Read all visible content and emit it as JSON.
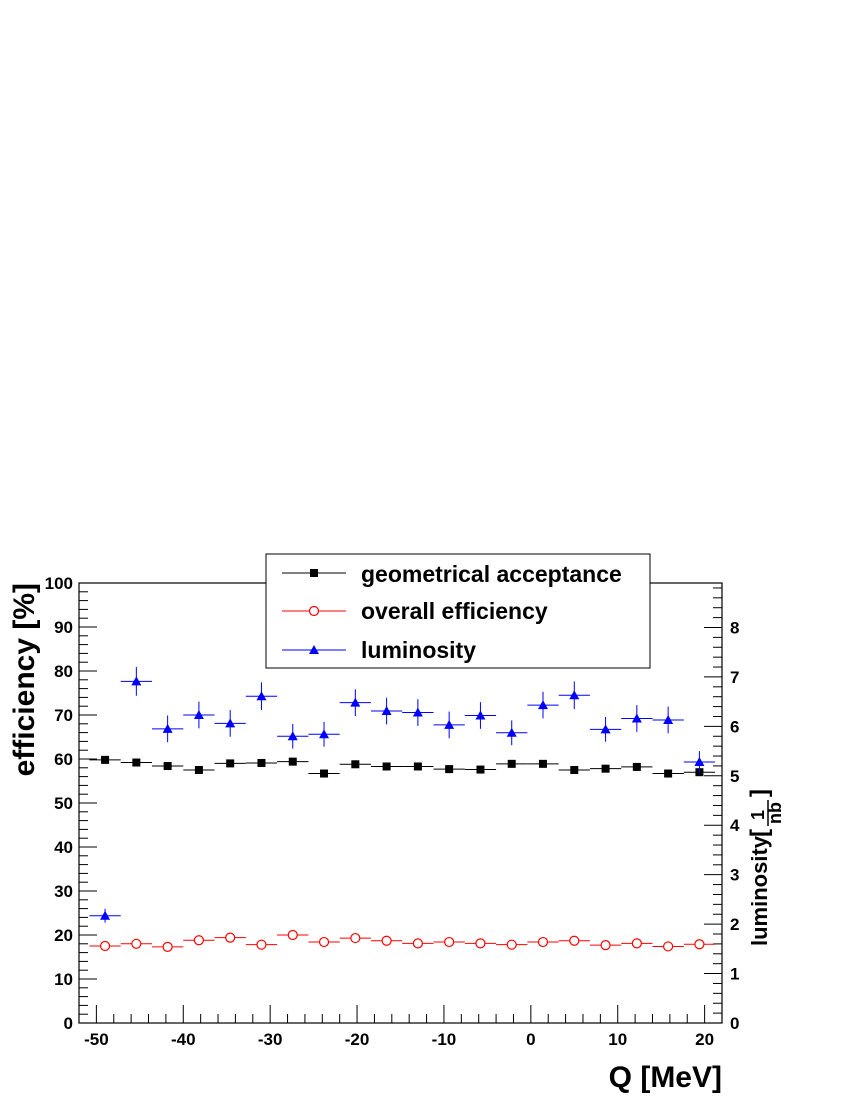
{
  "chart_data": {
    "type": "scatter",
    "title": "",
    "xlabel": "Q [MeV]",
    "ylabel": "efficiency [%]",
    "y2label_main": "luminosity",
    "y2label_unit_num": "1",
    "y2label_unit_den": "nb",
    "xlim": [
      -52,
      22
    ],
    "ylim": [
      0,
      100
    ],
    "y2lim": [
      0,
      8.9
    ],
    "x_ticks": [
      -50,
      -40,
      -30,
      -20,
      -10,
      0,
      10,
      20
    ],
    "y_ticks": [
      0,
      10,
      20,
      30,
      40,
      50,
      60,
      70,
      80,
      90,
      100
    ],
    "y2_ticks": [
      0,
      1,
      2,
      3,
      4,
      5,
      6,
      7,
      8
    ],
    "x_bin_halfwidth": 1.8,
    "legend_position": "top-center",
    "grid": false,
    "colors": {
      "acceptance": "#000000",
      "efficiency": "#ff0000",
      "luminosity": "#0000ff"
    },
    "x": [
      -49.0,
      -45.4,
      -41.8,
      -38.2,
      -34.6,
      -31.0,
      -27.4,
      -23.8,
      -20.2,
      -16.6,
      -13.0,
      -9.4,
      -5.8,
      -2.2,
      1.4,
      5.0,
      8.6,
      12.2,
      15.8,
      19.4
    ],
    "series": [
      {
        "name": "geometrical acceptance",
        "axis": "left",
        "marker": "filled-square",
        "values": [
          59.8,
          59.2,
          58.4,
          57.5,
          59.0,
          59.1,
          59.4,
          56.7,
          58.8,
          58.3,
          58.3,
          57.7,
          57.6,
          58.9,
          58.9,
          57.5,
          57.8,
          58.2,
          56.7,
          57.0
        ],
        "errors": [
          0.7,
          0.7,
          0.7,
          0.7,
          0.7,
          0.7,
          0.7,
          0.7,
          0.7,
          0.7,
          0.7,
          0.7,
          0.7,
          0.7,
          0.7,
          0.7,
          0.7,
          0.7,
          0.7,
          0.7
        ]
      },
      {
        "name": "overall efficiency",
        "axis": "left",
        "marker": "open-circle",
        "values": [
          17.5,
          18.0,
          17.3,
          18.8,
          19.4,
          17.8,
          20.0,
          18.4,
          19.3,
          18.7,
          18.1,
          18.4,
          18.1,
          17.8,
          18.4,
          18.7,
          17.7,
          18.1,
          17.4,
          17.9
        ],
        "errors": [
          0.2,
          0.2,
          0.2,
          0.2,
          0.2,
          0.2,
          0.2,
          0.2,
          0.2,
          0.2,
          0.2,
          0.2,
          0.2,
          0.2,
          0.2,
          0.2,
          0.2,
          0.2,
          0.2,
          0.2
        ]
      },
      {
        "name": "luminosity",
        "axis": "right",
        "marker": "filled-triangle",
        "values": [
          2.17,
          6.91,
          5.95,
          6.23,
          6.06,
          6.61,
          5.8,
          5.84,
          6.48,
          6.31,
          6.28,
          6.03,
          6.22,
          5.87,
          6.43,
          6.63,
          5.94,
          6.16,
          6.13,
          5.28
        ],
        "errors": [
          0.14,
          0.29,
          0.27,
          0.27,
          0.27,
          0.28,
          0.25,
          0.25,
          0.27,
          0.27,
          0.27,
          0.27,
          0.27,
          0.25,
          0.27,
          0.28,
          0.25,
          0.27,
          0.27,
          0.22
        ]
      }
    ]
  }
}
